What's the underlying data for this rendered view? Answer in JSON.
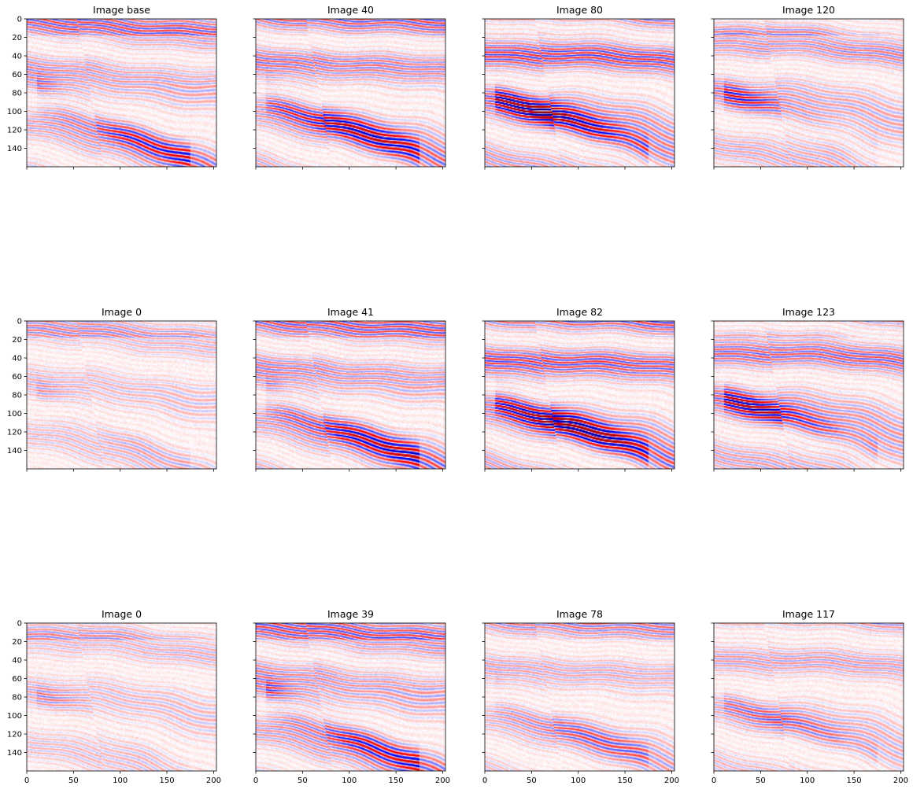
{
  "chart_data": [
    {
      "type": "heatmap",
      "title": "Image base",
      "xlim": [
        0,
        203
      ],
      "ylim": [
        160,
        0
      ],
      "xticks": [
        0,
        50,
        100,
        150,
        200
      ],
      "yticks": [
        0,
        20,
        40,
        60,
        80,
        100,
        120,
        140
      ],
      "colormap": "seismic",
      "intensity": 0.75,
      "show_xtick_labels": false,
      "show_ytick_labels": true
    },
    {
      "type": "heatmap",
      "title": "Image 40",
      "xlim": [
        0,
        203
      ],
      "ylim": [
        160,
        0
      ],
      "xticks": [
        0,
        50,
        100,
        150,
        200
      ],
      "yticks": [
        0,
        20,
        40,
        60,
        80,
        100,
        120,
        140
      ],
      "colormap": "seismic",
      "intensity": 0.8,
      "show_xtick_labels": false,
      "show_ytick_labels": false
    },
    {
      "type": "heatmap",
      "title": "Image 80",
      "xlim": [
        0,
        203
      ],
      "ylim": [
        160,
        0
      ],
      "xticks": [
        0,
        50,
        100,
        150,
        200
      ],
      "yticks": [
        0,
        20,
        40,
        60,
        80,
        100,
        120,
        140
      ],
      "colormap": "seismic",
      "intensity": 1.0,
      "show_xtick_labels": false,
      "show_ytick_labels": false
    },
    {
      "type": "heatmap",
      "title": "Image 120",
      "xlim": [
        0,
        203
      ],
      "ylim": [
        160,
        0
      ],
      "xticks": [
        0,
        50,
        100,
        150,
        200
      ],
      "yticks": [
        0,
        20,
        40,
        60,
        80,
        100,
        120,
        140
      ],
      "colormap": "seismic",
      "intensity": 0.65,
      "show_xtick_labels": false,
      "show_ytick_labels": false
    },
    {
      "type": "heatmap",
      "title": "Image 0",
      "xlim": [
        0,
        203
      ],
      "ylim": [
        160,
        0
      ],
      "xticks": [
        0,
        50,
        100,
        150,
        200
      ],
      "yticks": [
        0,
        20,
        40,
        60,
        80,
        100,
        120,
        140
      ],
      "colormap": "seismic",
      "intensity": 0.35,
      "show_xtick_labels": false,
      "show_ytick_labels": true
    },
    {
      "type": "heatmap",
      "title": "Image 41",
      "xlim": [
        0,
        203
      ],
      "ylim": [
        160,
        0
      ],
      "xticks": [
        0,
        50,
        100,
        150,
        200
      ],
      "yticks": [
        0,
        20,
        40,
        60,
        80,
        100,
        120,
        140
      ],
      "colormap": "seismic",
      "intensity": 0.8,
      "show_xtick_labels": false,
      "show_ytick_labels": false
    },
    {
      "type": "heatmap",
      "title": "Image 82",
      "xlim": [
        0,
        203
      ],
      "ylim": [
        160,
        0
      ],
      "xticks": [
        0,
        50,
        100,
        150,
        200
      ],
      "yticks": [
        0,
        20,
        40,
        60,
        80,
        100,
        120,
        140
      ],
      "colormap": "seismic",
      "intensity": 1.0,
      "show_xtick_labels": false,
      "show_ytick_labels": false
    },
    {
      "type": "heatmap",
      "title": "Image 123",
      "xlim": [
        0,
        203
      ],
      "ylim": [
        160,
        0
      ],
      "xticks": [
        0,
        50,
        100,
        150,
        200
      ],
      "yticks": [
        0,
        20,
        40,
        60,
        80,
        100,
        120,
        140
      ],
      "colormap": "seismic",
      "intensity": 0.85,
      "show_xtick_labels": false,
      "show_ytick_labels": false
    },
    {
      "type": "heatmap",
      "title": "Image 0",
      "xlim": [
        0,
        203
      ],
      "ylim": [
        160,
        0
      ],
      "xticks": [
        0,
        50,
        100,
        150,
        200
      ],
      "yticks": [
        0,
        20,
        40,
        60,
        80,
        100,
        120,
        140
      ],
      "colormap": "seismic",
      "intensity": 0.35,
      "show_xtick_labels": true,
      "show_ytick_labels": true
    },
    {
      "type": "heatmap",
      "title": "Image 39",
      "xlim": [
        0,
        203
      ],
      "ylim": [
        160,
        0
      ],
      "xticks": [
        0,
        50,
        100,
        150,
        200
      ],
      "yticks": [
        0,
        20,
        40,
        60,
        80,
        100,
        120,
        140
      ],
      "colormap": "seismic",
      "intensity": 0.85,
      "show_xtick_labels": true,
      "show_ytick_labels": false
    },
    {
      "type": "heatmap",
      "title": "Image 78",
      "xlim": [
        0,
        203
      ],
      "ylim": [
        160,
        0
      ],
      "xticks": [
        0,
        50,
        100,
        150,
        200
      ],
      "yticks": [
        0,
        20,
        40,
        60,
        80,
        100,
        120,
        140
      ],
      "colormap": "seismic",
      "intensity": 0.45,
      "show_xtick_labels": true,
      "show_ytick_labels": false
    },
    {
      "type": "heatmap",
      "title": "Image 117",
      "xlim": [
        0,
        203
      ],
      "ylim": [
        160,
        0
      ],
      "xticks": [
        0,
        50,
        100,
        150,
        200
      ],
      "yticks": [
        0,
        20,
        40,
        60,
        80,
        100,
        120,
        140
      ],
      "colormap": "seismic",
      "intensity": 0.45,
      "show_xtick_labels": true,
      "show_ytick_labels": false
    }
  ]
}
